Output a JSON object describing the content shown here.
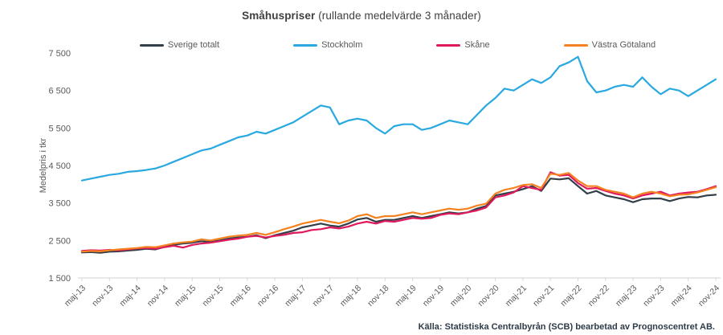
{
  "title": {
    "main": "Småhuspriser",
    "subtitle": " (rullande medelvärde 3 månader)"
  },
  "source": "Källa: Statistiska Centralbyrån (SCB) bearbetad av Prognoscentret AB.",
  "chart_data": {
    "type": "line",
    "title": "Småhuspriser (rullande medelvärde 3 månader)",
    "xlabel": "",
    "ylabel": "Medelpris i tkr",
    "ylim": [
      1500,
      7500
    ],
    "ytick_step": 1000,
    "ytick_labels": [
      "1 500",
      "2 500",
      "3 500",
      "4 500",
      "5 500",
      "6 500",
      "7 500"
    ],
    "grid": false,
    "legend_position": "top",
    "x_sampling": "every 2 months, maj-13 to nov-24",
    "xtick_every_n_points": 3,
    "xtick_labels": [
      "maj-13",
      "nov-13",
      "maj-14",
      "nov-14",
      "maj-15",
      "nov-15",
      "maj-16",
      "nov-16",
      "maj-17",
      "nov-17",
      "maj-18",
      "nov-18",
      "maj-19",
      "nov-19",
      "maj-20",
      "nov-20",
      "maj-21",
      "nov-21",
      "maj-22",
      "nov-22",
      "maj-23",
      "nov-23",
      "maj-24",
      "nov-24"
    ],
    "series": [
      {
        "name": "Sverige totalt",
        "color": "#333f48",
        "values": [
          2180,
          2190,
          2170,
          2200,
          2210,
          2230,
          2250,
          2280,
          2260,
          2330,
          2380,
          2420,
          2440,
          2480,
          2460,
          2500,
          2550,
          2580,
          2600,
          2640,
          2560,
          2640,
          2700,
          2760,
          2850,
          2900,
          2950,
          2900,
          2870,
          2950,
          3060,
          3100,
          3000,
          3050,
          3050,
          3100,
          3150,
          3100,
          3150,
          3200,
          3250,
          3220,
          3250,
          3350,
          3420,
          3700,
          3750,
          3800,
          3870,
          3950,
          3820,
          4150,
          4130,
          4160,
          3950,
          3750,
          3820,
          3700,
          3650,
          3600,
          3520,
          3600,
          3620,
          3620,
          3550,
          3620,
          3660,
          3650,
          3700,
          3720
        ]
      },
      {
        "name": "Stockholm",
        "color": "#29a9e0",
        "values": [
          4100,
          4150,
          4200,
          4250,
          4280,
          4330,
          4350,
          4380,
          4420,
          4500,
          4600,
          4700,
          4800,
          4900,
          4950,
          5050,
          5150,
          5250,
          5300,
          5400,
          5350,
          5450,
          5550,
          5650,
          5800,
          5950,
          6100,
          6050,
          5600,
          5700,
          5750,
          5700,
          5500,
          5350,
          5550,
          5600,
          5600,
          5450,
          5500,
          5600,
          5700,
          5650,
          5600,
          5850,
          6100,
          6300,
          6550,
          6500,
          6650,
          6800,
          6700,
          6850,
          7150,
          7250,
          7400,
          6750,
          6450,
          6500,
          6600,
          6650,
          6600,
          6850,
          6600,
          6400,
          6550,
          6500,
          6350,
          6500,
          6650,
          6800
        ]
      },
      {
        "name": "Skåne",
        "color": "#e0195e",
        "values": [
          2220,
          2240,
          2230,
          2250,
          2240,
          2260,
          2290,
          2300,
          2280,
          2320,
          2360,
          2310,
          2380,
          2420,
          2440,
          2480,
          2520,
          2550,
          2600,
          2620,
          2580,
          2620,
          2650,
          2700,
          2720,
          2780,
          2800,
          2850,
          2820,
          2870,
          2950,
          3000,
          2950,
          3020,
          3000,
          3050,
          3100,
          3080,
          3100,
          3180,
          3220,
          3200,
          3250,
          3300,
          3380,
          3650,
          3700,
          3780,
          3950,
          3900,
          3850,
          4320,
          4230,
          4250,
          4030,
          3880,
          3900,
          3820,
          3750,
          3700,
          3620,
          3700,
          3750,
          3800,
          3700,
          3750,
          3780,
          3800,
          3870,
          3950
        ]
      },
      {
        "name": "Västra Götaland",
        "color": "#f58220",
        "values": [
          2200,
          2220,
          2210,
          2240,
          2260,
          2280,
          2300,
          2330,
          2320,
          2370,
          2420,
          2450,
          2470,
          2530,
          2500,
          2550,
          2600,
          2630,
          2650,
          2700,
          2650,
          2720,
          2800,
          2870,
          2950,
          3000,
          3050,
          3000,
          2960,
          3030,
          3150,
          3200,
          3100,
          3150,
          3150,
          3200,
          3250,
          3200,
          3250,
          3300,
          3350,
          3320,
          3350,
          3430,
          3480,
          3750,
          3850,
          3900,
          3980,
          4000,
          3900,
          4280,
          4250,
          4300,
          4100,
          3950,
          3950,
          3850,
          3800,
          3750,
          3650,
          3750,
          3800,
          3750,
          3680,
          3720,
          3730,
          3780,
          3850,
          3920
        ]
      }
    ]
  }
}
